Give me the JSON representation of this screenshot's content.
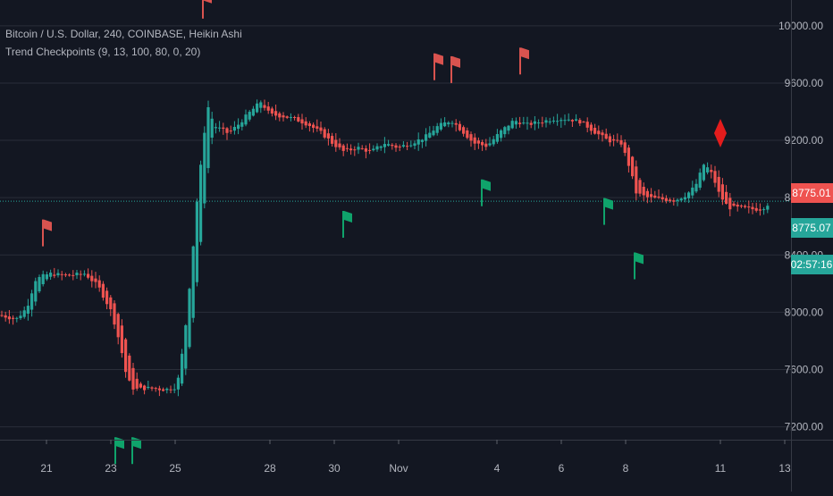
{
  "theme": {
    "background": "#131722",
    "grid": "#2a2e39",
    "axis_text": "#b2b5be",
    "bull_color": "#26a69a",
    "bear_color": "#ef5350",
    "buy_flag_color": "#0fa36b",
    "sell_flag_color": "#d9534f",
    "diamond_color": "#e31c1c",
    "price_line_color": "#26a69a"
  },
  "legend": {
    "symbol_line": "Bitcoin / U.S. Dollar, 240, COINBASE, Heikin Ashi",
    "indicator_line": "Trend Checkpoints (9, 13, 100, 80, 0, 20)"
  },
  "price_tags": {
    "close": "8775.01",
    "current": "8775.07",
    "countdown": "02:57:16"
  },
  "chart_data": {
    "type": "candlestick",
    "series_style": "Heikin Ashi",
    "ylim": [
      7110,
      10180
    ],
    "xlim": [
      0,
      885
    ],
    "y_ticks": [
      {
        "value": 7200,
        "label": "7200.00"
      },
      {
        "value": 7600,
        "label": "7600.00"
      },
      {
        "value": 8000,
        "label": "8000.00"
      },
      {
        "value": 8400,
        "label": "8400.00"
      },
      {
        "value": 8800,
        "label": "8800.00"
      },
      {
        "value": 9200,
        "label": "9200.00"
      },
      {
        "value": 9600,
        "label": "9600.00"
      },
      {
        "value": 10000,
        "label": "10000.00"
      }
    ],
    "x_ticks": [
      {
        "x": 52,
        "label": "21"
      },
      {
        "x": 124,
        "label": "23"
      },
      {
        "x": 196,
        "label": "25"
      },
      {
        "x": 302,
        "label": "28"
      },
      {
        "x": 374,
        "label": "30"
      },
      {
        "x": 446,
        "label": "Nov"
      },
      {
        "x": 556,
        "label": "4"
      },
      {
        "x": 628,
        "label": "6"
      },
      {
        "x": 700,
        "label": "8"
      },
      {
        "x": 806,
        "label": "11"
      },
      {
        "x": 878,
        "label": "13"
      }
    ],
    "price_line_value": 8775,
    "anchors": [
      [
        0,
        7980
      ],
      [
        18,
        7950
      ],
      [
        30,
        8030
      ],
      [
        40,
        8230
      ],
      [
        55,
        8270
      ],
      [
        75,
        8255
      ],
      [
        95,
        8270
      ],
      [
        110,
        8180
      ],
      [
        125,
        8000
      ],
      [
        135,
        7760
      ],
      [
        142,
        7540
      ],
      [
        150,
        7460
      ],
      [
        165,
        7470
      ],
      [
        185,
        7460
      ],
      [
        198,
        7480
      ],
      [
        206,
        7800
      ],
      [
        214,
        8300
      ],
      [
        220,
        8750
      ],
      [
        226,
        9100
      ],
      [
        232,
        9450
      ],
      [
        240,
        9300
      ],
      [
        255,
        9250
      ],
      [
        265,
        9300
      ],
      [
        280,
        9400
      ],
      [
        292,
        9470
      ],
      [
        302,
        9380
      ],
      [
        315,
        9370
      ],
      [
        330,
        9350
      ],
      [
        345,
        9310
      ],
      [
        360,
        9250
      ],
      [
        372,
        9180
      ],
      [
        385,
        9120
      ],
      [
        400,
        9150
      ],
      [
        415,
        9120
      ],
      [
        430,
        9180
      ],
      [
        445,
        9150
      ],
      [
        460,
        9180
      ],
      [
        475,
        9220
      ],
      [
        490,
        9300
      ],
      [
        505,
        9340
      ],
      [
        518,
        9260
      ],
      [
        530,
        9180
      ],
      [
        545,
        9160
      ],
      [
        560,
        9260
      ],
      [
        575,
        9340
      ],
      [
        590,
        9310
      ],
      [
        605,
        9330
      ],
      [
        620,
        9350
      ],
      [
        635,
        9350
      ],
      [
        650,
        9330
      ],
      [
        665,
        9260
      ],
      [
        680,
        9200
      ],
      [
        695,
        9180
      ],
      [
        705,
        9000
      ],
      [
        712,
        8830
      ],
      [
        725,
        8800
      ],
      [
        740,
        8790
      ],
      [
        755,
        8780
      ],
      [
        768,
        8820
      ],
      [
        778,
        8880
      ],
      [
        788,
        9040
      ],
      [
        797,
        8960
      ],
      [
        805,
        8820
      ],
      [
        815,
        8730
      ],
      [
        828,
        8730
      ],
      [
        840,
        8720
      ],
      [
        852,
        8720
      ],
      [
        860,
        8760
      ]
    ],
    "signals": [
      {
        "kind": "sell-flag",
        "x": 52,
        "price": 8560
      },
      {
        "kind": "sell-flag",
        "x": 231,
        "price": 10150
      },
      {
        "kind": "sell-flag",
        "x": 490,
        "price": 9720
      },
      {
        "kind": "sell-flag",
        "x": 509,
        "price": 9700
      },
      {
        "kind": "sell-flag",
        "x": 586,
        "price": 9760
      },
      {
        "kind": "buy-flag",
        "x": 133,
        "price": 7040
      },
      {
        "kind": "buy-flag",
        "x": 152,
        "price": 7040
      },
      {
        "kind": "buy-flag",
        "x": 388,
        "price": 8620
      },
      {
        "kind": "buy-flag",
        "x": 543,
        "price": 8840
      },
      {
        "kind": "buy-flag",
        "x": 680,
        "price": 8710
      },
      {
        "kind": "buy-flag",
        "x": 714,
        "price": 8330
      },
      {
        "kind": "diamond",
        "x": 806,
        "price": 9250
      }
    ]
  }
}
